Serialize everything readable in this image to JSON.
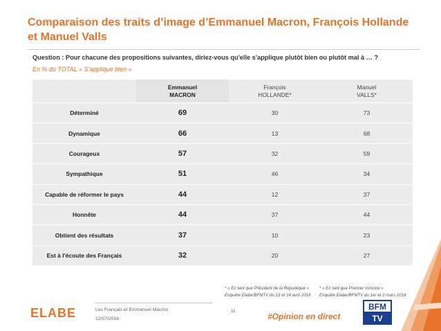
{
  "title": "Comparaison des traits d’image d’Emmanuel Macron, François Hollande et Manuel Valls",
  "question": "Question : Pour chacune des propositions suivantes, diriez-vous qu'elle s'applique plutôt bien ou plutôt mal à … ?",
  "subtitle": "En % du TOTAL « S’applique bien »",
  "table": {
    "headers": [
      {
        "line1": "Emmanuel",
        "line2": "MACRON"
      },
      {
        "line1": "François",
        "line2": "HOLLANDE*"
      },
      {
        "line1": "Manuel",
        "line2": "VALLS*"
      }
    ],
    "rows": [
      {
        "label": "Déterminé",
        "macron": "69",
        "hollande": "30",
        "valls": "73"
      },
      {
        "label": "Dynamique",
        "macron": "66",
        "hollande": "13",
        "valls": "68"
      },
      {
        "label": "Courageux",
        "macron": "57",
        "hollande": "32",
        "valls": "59"
      },
      {
        "label": "Sympathique",
        "macron": "51",
        "hollande": "46",
        "valls": "34"
      },
      {
        "label": "Capable de réformer le pays",
        "macron": "44",
        "hollande": "12",
        "valls": "37"
      },
      {
        "label": "Honnête",
        "macron": "44",
        "hollande": "37",
        "valls": "44"
      },
      {
        "label": "Obtient des résultats",
        "macron": "37",
        "hollande": "10",
        "valls": "23"
      },
      {
        "label": "Est à l'écoute des Français",
        "macron": "32",
        "hollande": "20",
        "valls": "27"
      }
    ]
  },
  "notes": {
    "hollande_line1": "* « En tant que Président de la République »",
    "hollande_line2": "Enquête Elabe/BFMTV du 13 et 14 avril 2016",
    "valls_line1": "* « En tant que Premier ministre »",
    "valls_line2": "Enquête Elabe/BFMTV du 1er et 2 mars 2016"
  },
  "footer": {
    "study": "Les Français et Emmanuel Macron",
    "date": "12/07/2016",
    "page": "11",
    "hashtag": "#Opinion en direct"
  },
  "logos": {
    "elabe": "ELABE",
    "bfm_top": "BFM",
    "bfm_bottom": "TV"
  },
  "colors": {
    "accent": "#e8742c",
    "table_bg": "#ececec",
    "bfm_blue": "#1b3f8f"
  }
}
